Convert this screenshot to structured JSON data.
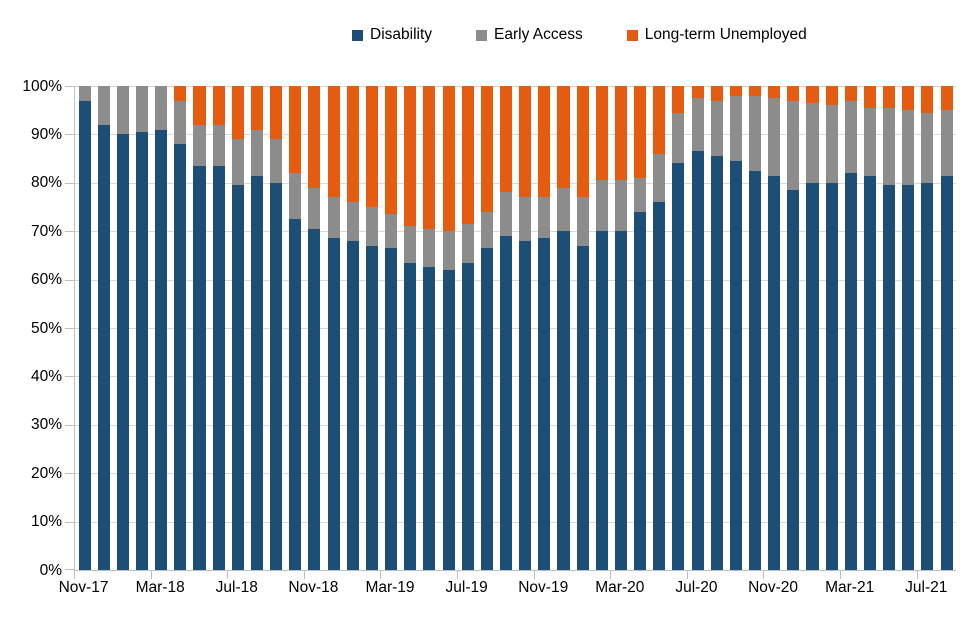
{
  "chart_data": {
    "type": "bar",
    "variant": "stacked-100-percent",
    "title": "",
    "legend_position": "top",
    "grid": true,
    "categories": [
      "Nov-17",
      "Dec-17",
      "Jan-18",
      "Feb-18",
      "Mar-18",
      "Apr-18",
      "May-18",
      "Jun-18",
      "Jul-18",
      "Aug-18",
      "Sep-18",
      "Oct-18",
      "Nov-18",
      "Dec-18",
      "Jan-19",
      "Feb-19",
      "Mar-19",
      "Apr-19",
      "May-19",
      "Jun-19",
      "Jul-19",
      "Aug-19",
      "Sep-19",
      "Oct-19",
      "Nov-19",
      "Dec-19",
      "Jan-20",
      "Feb-20",
      "Mar-20",
      "Apr-20",
      "May-20",
      "Jun-20",
      "Jul-20",
      "Aug-20",
      "Sep-20",
      "Oct-20",
      "Nov-20",
      "Dec-20",
      "Jan-21",
      "Feb-21",
      "Mar-21",
      "Apr-21",
      "May-21",
      "Jun-21",
      "Jul-21",
      "Aug-21"
    ],
    "series": [
      {
        "name": "Disability",
        "color": "#1d4f76",
        "values": [
          97,
          92,
          90,
          90.5,
          91,
          88,
          83.5,
          83.5,
          79.5,
          81.5,
          80,
          72.5,
          70.5,
          68.5,
          68,
          67,
          66.5,
          63.5,
          62.5,
          62,
          63.5,
          66.5,
          69,
          68,
          68.5,
          70,
          67,
          70,
          70,
          74,
          76,
          84,
          86.5,
          85.5,
          84.5,
          82.5,
          81.5,
          78.5,
          80,
          80,
          82,
          81.5,
          79.5,
          79.5,
          80,
          81.5
        ]
      },
      {
        "name": "Early Access",
        "color": "#8c8c8c",
        "values": [
          3,
          8,
          10,
          9.5,
          9,
          9,
          8.5,
          8.5,
          9.5,
          9.5,
          9,
          9.5,
          8.5,
          8.5,
          8,
          8,
          7,
          7.5,
          8,
          8,
          8,
          7.5,
          9,
          9,
          8.5,
          9,
          10,
          10.5,
          10.5,
          7,
          10,
          10.5,
          11,
          11.5,
          13.5,
          15.5,
          16,
          18.5,
          16.5,
          16,
          15,
          14,
          16,
          15.5,
          14.5,
          13.5
        ]
      },
      {
        "name": "Long-term Unemployed",
        "color": "#e45c10",
        "values": [
          0,
          0,
          0,
          0,
          0,
          3,
          8,
          8,
          11,
          9,
          11,
          18,
          21,
          23,
          24,
          25,
          26.5,
          29,
          29.5,
          30,
          28.5,
          26,
          22,
          23,
          23,
          21,
          23,
          19.5,
          19.5,
          19,
          14,
          5.5,
          2.5,
          3,
          2,
          2,
          2.5,
          3,
          3.5,
          4,
          3,
          4.5,
          4.5,
          5,
          5.5,
          5
        ]
      }
    ],
    "y_axis": {
      "min": 0,
      "max": 100,
      "step": 10,
      "unit": "%",
      "tick_labels": [
        "0%",
        "10%",
        "20%",
        "30%",
        "40%",
        "50%",
        "60%",
        "70%",
        "80%",
        "90%",
        "100%"
      ]
    },
    "x_axis": {
      "label_every_n": 4,
      "tick_every_n": 4,
      "shown_labels": [
        "Nov-17",
        "Mar-18",
        "Jul-18",
        "Nov-18",
        "Mar-19",
        "Jul-19",
        "Nov-19",
        "Mar-20",
        "Jul-20",
        "Nov-20",
        "Mar-21",
        "Jul-21"
      ]
    },
    "colors": {
      "gridline": "#d9d9d9",
      "axis_line": "#bfbfbf",
      "text": "#000000",
      "background": "#ffffff"
    }
  }
}
